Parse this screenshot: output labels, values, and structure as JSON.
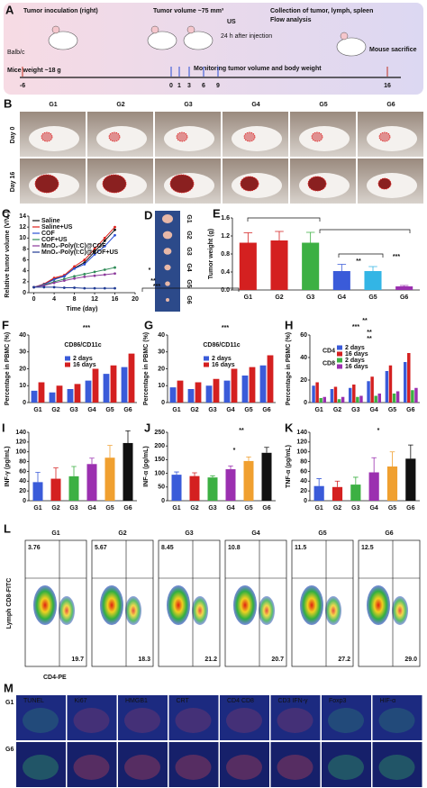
{
  "schematic": {
    "label": "A",
    "inoculation": "Tumor inoculation (right)",
    "mouse": "Balb/c",
    "weight": "Mice weight ~18 g",
    "volume": "Tumor volume ~75 mm³",
    "injection": "24 h after injection",
    "us": "US",
    "collection": "Collection of tumor, lymph, spleen",
    "analysis": "Flow analysis",
    "sacrifice": "Mouse sacrifice",
    "monitoring": "Monitoring tumor volume and body weight",
    "days": [
      "-6",
      "0",
      "1",
      "3",
      "6",
      "9",
      "16"
    ]
  },
  "photos": {
    "label": "B",
    "groups": [
      "G1",
      "G2",
      "G3",
      "G4",
      "G5",
      "G6"
    ],
    "rows": [
      "Day 0",
      "Day 16"
    ]
  },
  "tumors": {
    "label": "D",
    "groups": [
      "G1",
      "G2",
      "G3",
      "G4",
      "G5",
      "G6"
    ]
  },
  "flow": {
    "label": "L",
    "y_label": "Lymph CD8-FITC",
    "x_label": "CD4-PE",
    "plots": [
      {
        "group": "G1",
        "upper_left": "3.76",
        "lower_right": "19.7"
      },
      {
        "group": "G2",
        "upper_left": "5.67",
        "lower_right": "18.3"
      },
      {
        "group": "G3",
        "upper_left": "8.45",
        "lower_right": "21.2"
      },
      {
        "group": "G4",
        "upper_left": "10.8",
        "lower_right": "20.7"
      },
      {
        "group": "G5",
        "upper_left": "11.5",
        "lower_right": "27.2"
      },
      {
        "group": "G6",
        "upper_left": "12.5",
        "lower_right": "29.0"
      }
    ]
  },
  "microscopy": {
    "label": "M",
    "rows": [
      "G1",
      "G6"
    ],
    "stains": [
      "TUNEL",
      "Ki67",
      "HMGB1",
      "CRT",
      "CD4 CD8",
      "CD3 IFN-γ",
      "Foxp3",
      "HIF-α"
    ]
  },
  "chart_data": [
    {
      "type": "line",
      "label": "C",
      "x_label": "Time (day)",
      "y_label": "Relative tumor volume (V/V₀)",
      "x": [
        0,
        2,
        4,
        6,
        8,
        10,
        12,
        14,
        16
      ],
      "xlim": [
        -1,
        20
      ],
      "xticks": [
        0,
        4,
        8,
        12,
        16,
        20
      ],
      "ylim": [
        0,
        14
      ],
      "yticks": [
        0,
        2,
        4,
        6,
        8,
        10,
        12,
        14
      ],
      "annotations": [
        "*",
        "**",
        "***"
      ],
      "series": [
        {
          "name": "Saline",
          "color": "#111111",
          "values": [
            1,
            1.5,
            2.5,
            3,
            4.5,
            5.5,
            7.5,
            9.5,
            11.5
          ]
        },
        {
          "name": "Saline+US",
          "color": "#e0201b",
          "values": [
            1,
            1.6,
            2.7,
            3.2,
            4.8,
            6,
            8,
            10,
            12
          ]
        },
        {
          "name": "COF",
          "color": "#2a4fd6",
          "values": [
            1,
            1.5,
            2.4,
            3,
            4.4,
            5.2,
            7,
            8.5,
            10.5
          ]
        },
        {
          "name": "COF+US",
          "color": "#2e8b57",
          "values": [
            1,
            1.4,
            2,
            2.5,
            3,
            3.4,
            3.8,
            4.2,
            4.6
          ]
        },
        {
          "name": "MnO₂-Poly(I:C)@COF",
          "color": "#8b3a9b",
          "values": [
            1,
            1.3,
            1.8,
            2.2,
            2.6,
            2.9,
            3.1,
            3.3,
            3.5
          ]
        },
        {
          "name": "MnO₂-Poly(I:C)@COF+US",
          "color": "#1f3a93",
          "values": [
            1,
            1,
            1,
            0.9,
            0.9,
            0.8,
            0.8,
            0.8,
            0.8
          ]
        }
      ]
    },
    {
      "type": "bar",
      "label": "E",
      "y_label": "Tumor weight (g)",
      "categories": [
        "G1",
        "G2",
        "G3",
        "G4",
        "G5",
        "G6"
      ],
      "values": [
        1.05,
        1.1,
        1.05,
        0.42,
        0.42,
        0.08
      ],
      "errors": [
        0.22,
        0.2,
        0.23,
        0.15,
        0.1,
        0.02
      ],
      "colors": [
        "#d42020",
        "#d42020",
        "#3cb043",
        "#3a5bd9",
        "#33b5e5",
        "#9b30b0"
      ],
      "ylim": [
        0,
        1.6
      ],
      "yticks": [
        {
          "value": 0,
          "label": "0.0"
        },
        0.4,
        0.8,
        1.2,
        1.6
      ],
      "annotations": [
        "**",
        "***"
      ]
    },
    {
      "type": "bar",
      "label": "F",
      "title": "CD86/CD11c",
      "y_label": "Percentage in PBMC (%)",
      "categories": [
        "G1",
        "G2",
        "G3",
        "G4",
        "G5",
        "G6"
      ],
      "ylim": [
        0,
        40
      ],
      "yticks": [
        0,
        10,
        20,
        30,
        40
      ],
      "annotations": [
        "***"
      ],
      "series": [
        {
          "name": "2 days",
          "color": "#3a5bd9",
          "values": [
            7,
            6,
            8,
            13,
            17,
            21
          ]
        },
        {
          "name": "16 days",
          "color": "#d42020",
          "values": [
            12,
            10,
            11,
            20,
            22,
            29
          ]
        }
      ]
    },
    {
      "type": "bar",
      "label": "G",
      "title": "CD86/CD11c",
      "y_label": "Percentage in PBMC (%)",
      "categories": [
        "G1",
        "G2",
        "G3",
        "G4",
        "G5",
        "G6"
      ],
      "ylim": [
        0,
        40
      ],
      "yticks": [
        0,
        10,
        20,
        30,
        40
      ],
      "annotations": [
        "***"
      ],
      "series": [
        {
          "name": "2 days",
          "color": "#3a5bd9",
          "values": [
            9,
            8,
            10,
            13,
            16,
            22
          ]
        },
        {
          "name": "16 days",
          "color": "#d42020",
          "values": [
            13,
            12,
            14,
            20,
            21,
            28
          ]
        }
      ]
    },
    {
      "type": "bar",
      "label": "H",
      "y_label": "Percentage in PBMC (%)",
      "legend_groups": [
        "CD4",
        "CD8"
      ],
      "categories": [
        "G1",
        "G2",
        "G3",
        "G4",
        "G5",
        "G6"
      ],
      "ylim": [
        0,
        60
      ],
      "yticks": [
        0,
        20,
        40,
        60
      ],
      "annotations": [
        "**",
        "***",
        "**",
        "**"
      ],
      "series": [
        {
          "name": "2 days",
          "color": "#3a5bd9",
          "values": [
            15,
            12,
            13,
            19,
            28,
            36
          ]
        },
        {
          "name": "16 days",
          "color": "#d42020",
          "values": [
            18,
            14,
            16,
            23,
            33,
            44
          ]
        },
        {
          "name": "2 days",
          "color": "#3cb043",
          "values": [
            4,
            3,
            5,
            6,
            8,
            11
          ]
        },
        {
          "name": "16 days",
          "color": "#9b30b0",
          "values": [
            5,
            5,
            6,
            8,
            10,
            13
          ]
        }
      ]
    },
    {
      "type": "bar",
      "label": "I",
      "y_label": "INF-γ (pg/mL)",
      "categories": [
        "G1",
        "G2",
        "G3",
        "G4",
        "G5",
        "G6"
      ],
      "values": [
        38,
        45,
        50,
        75,
        88,
        118
      ],
      "errors": [
        20,
        22,
        20,
        12,
        25,
        25
      ],
      "colors": [
        "#3a5bd9",
        "#d42020",
        "#3cb043",
        "#9b30b0",
        "#f0a030",
        "#111111"
      ],
      "ylim": [
        0,
        140
      ],
      "yticks": [
        0,
        20,
        40,
        60,
        80,
        100,
        120,
        140
      ]
    },
    {
      "type": "bar",
      "label": "J",
      "y_label": "INF-α (pg/mL)",
      "categories": [
        "G1",
        "G2",
        "G3",
        "G4",
        "G5",
        "G6"
      ],
      "values": [
        95,
        90,
        85,
        115,
        145,
        175
      ],
      "errors": [
        10,
        12,
        6,
        12,
        15,
        20
      ],
      "colors": [
        "#3a5bd9",
        "#d42020",
        "#3cb043",
        "#9b30b0",
        "#f0a030",
        "#111111"
      ],
      "ylim": [
        0,
        250
      ],
      "yticks": [
        0,
        50,
        100,
        150,
        200,
        250
      ],
      "annotations": [
        "**",
        "*"
      ]
    },
    {
      "type": "bar",
      "label": "K",
      "y_label": "TNF-α (pg/mL)",
      "categories": [
        "G1",
        "G2",
        "G3",
        "G4",
        "G5",
        "G6"
      ],
      "values": [
        30,
        28,
        33,
        58,
        70,
        86
      ],
      "errors": [
        15,
        12,
        15,
        30,
        30,
        28
      ],
      "colors": [
        "#3a5bd9",
        "#d42020",
        "#3cb043",
        "#9b30b0",
        "#f0a030",
        "#111111"
      ],
      "ylim": [
        0,
        140
      ],
      "yticks": [
        0,
        20,
        40,
        60,
        80,
        100,
        120,
        140
      ],
      "annotations": [
        "*"
      ]
    }
  ]
}
